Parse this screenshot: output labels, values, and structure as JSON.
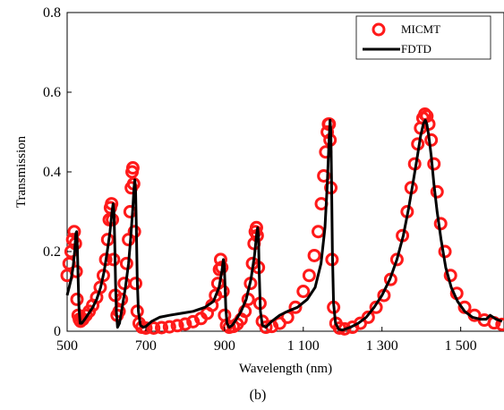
{
  "chart_data": {
    "type": "line",
    "title": "",
    "caption": "(b)",
    "xlabel": "Wavelength (nm)",
    "ylabel": "Transmission",
    "xlim": [
      500,
      1610
    ],
    "ylim": [
      0,
      0.8
    ],
    "x_ticks": [
      500,
      700,
      900,
      1100,
      1300,
      1500
    ],
    "x_tick_labels": [
      "500",
      "700",
      "900",
      "1 100",
      "1 300",
      "1 500"
    ],
    "y_ticks": [
      0,
      0.2,
      0.4,
      0.6,
      0.8
    ],
    "y_tick_labels": [
      "0",
      "0.2",
      "0.4",
      "0.6",
      "0.8"
    ],
    "grid": false,
    "legend_position": "top-right",
    "series": [
      {
        "name": "MICMT",
        "style": "markers",
        "color": "#ff1a1a",
        "x": [
          500,
          505,
          510,
          514,
          518,
          521,
          523,
          525,
          528,
          531,
          534,
          540,
          548,
          556,
          565,
          575,
          584,
          592,
          598,
          603,
          607,
          610,
          613,
          615,
          618,
          622,
          627,
          632,
          638,
          645,
          651,
          656,
          660,
          663,
          665,
          667,
          669,
          671,
          674,
          678,
          683,
          690,
          700,
          720,
          740,
          760,
          780,
          800,
          820,
          840,
          856,
          868,
          877,
          883,
          887,
          890,
          893,
          896,
          900,
          905,
          912,
          922,
          932,
          942,
          952,
          960,
          966,
          971,
          975,
          978,
          981,
          983,
          986,
          990,
          996,
          1005,
          1020,
          1040,
          1060,
          1080,
          1100,
          1115,
          1128,
          1138,
          1146,
          1152,
          1157,
          1161,
          1164,
          1166,
          1168,
          1170,
          1173,
          1177,
          1183,
          1192,
          1205,
          1225,
          1245,
          1265,
          1285,
          1305,
          1322,
          1338,
          1352,
          1364,
          1374,
          1383,
          1391,
          1398,
          1404,
          1409,
          1414,
          1419,
          1425,
          1432,
          1440,
          1449,
          1460,
          1474,
          1490,
          1510,
          1535,
          1560,
          1585,
          1605
        ],
        "y": [
          0.14,
          0.17,
          0.2,
          0.23,
          0.25,
          0.22,
          0.15,
          0.08,
          0.04,
          0.03,
          0.025,
          0.03,
          0.04,
          0.05,
          0.065,
          0.085,
          0.11,
          0.14,
          0.18,
          0.23,
          0.28,
          0.31,
          0.32,
          0.28,
          0.18,
          0.09,
          0.04,
          0.05,
          0.08,
          0.12,
          0.17,
          0.23,
          0.3,
          0.36,
          0.4,
          0.41,
          0.37,
          0.25,
          0.12,
          0.05,
          0.02,
          0.01,
          0.008,
          0.008,
          0.009,
          0.011,
          0.014,
          0.018,
          0.024,
          0.032,
          0.045,
          0.065,
          0.09,
          0.12,
          0.155,
          0.18,
          0.16,
          0.1,
          0.04,
          0.015,
          0.01,
          0.012,
          0.018,
          0.03,
          0.05,
          0.08,
          0.12,
          0.17,
          0.22,
          0.25,
          0.26,
          0.24,
          0.16,
          0.07,
          0.025,
          0.01,
          0.012,
          0.02,
          0.035,
          0.06,
          0.1,
          0.14,
          0.19,
          0.25,
          0.32,
          0.39,
          0.45,
          0.5,
          0.52,
          0.52,
          0.48,
          0.36,
          0.18,
          0.06,
          0.02,
          0.008,
          0.006,
          0.01,
          0.02,
          0.035,
          0.06,
          0.09,
          0.13,
          0.18,
          0.24,
          0.3,
          0.36,
          0.42,
          0.47,
          0.51,
          0.535,
          0.545,
          0.54,
          0.52,
          0.48,
          0.42,
          0.35,
          0.27,
          0.2,
          0.14,
          0.095,
          0.06,
          0.04,
          0.028,
          0.021,
          0.017
        ]
      },
      {
        "name": "FDTD",
        "style": "line",
        "color": "#000000",
        "x": [
          500,
          505,
          510,
          515,
          519,
          522,
          524,
          526,
          528,
          530,
          533,
          537,
          545,
          555,
          565,
          575,
          585,
          594,
          602,
          609,
          614,
          617,
          619,
          621,
          623,
          625,
          628,
          633,
          640,
          648,
          656,
          662,
          667,
          670,
          672,
          674,
          676,
          678,
          681,
          686,
          693,
          700,
          715,
          735,
          760,
          790,
          820,
          850,
          872,
          886,
          893,
          897,
          899,
          901,
          903,
          906,
          912,
          920,
          930,
          942,
          955,
          967,
          976,
          981,
          984,
          986,
          988,
          991,
          996,
          1005,
          1020,
          1040,
          1060,
          1085,
          1110,
          1130,
          1145,
          1155,
          1161,
          1165,
          1168,
          1170,
          1172,
          1174,
          1177,
          1182,
          1190,
          1200,
          1220,
          1240,
          1260,
          1280,
          1300,
          1320,
          1338,
          1354,
          1368,
          1380,
          1390,
          1398,
          1405,
          1410,
          1414,
          1419,
          1425,
          1432,
          1440,
          1450,
          1462,
          1476,
          1492,
          1510,
          1530,
          1550,
          1565,
          1575,
          1590,
          1605
        ],
        "y": [
          0.09,
          0.11,
          0.13,
          0.16,
          0.2,
          0.245,
          0.25,
          0.21,
          0.13,
          0.06,
          0.02,
          0.02,
          0.03,
          0.045,
          0.06,
          0.08,
          0.11,
          0.15,
          0.2,
          0.25,
          0.3,
          0.32,
          0.3,
          0.22,
          0.12,
          0.05,
          0.01,
          0.02,
          0.06,
          0.11,
          0.17,
          0.24,
          0.31,
          0.36,
          0.38,
          0.35,
          0.25,
          0.13,
          0.05,
          0.015,
          0.01,
          0.012,
          0.025,
          0.035,
          0.04,
          0.045,
          0.05,
          0.06,
          0.075,
          0.11,
          0.15,
          0.18,
          0.17,
          0.12,
          0.06,
          0.02,
          0.01,
          0.015,
          0.03,
          0.05,
          0.08,
          0.13,
          0.19,
          0.24,
          0.26,
          0.24,
          0.15,
          0.05,
          0.015,
          0.01,
          0.025,
          0.04,
          0.05,
          0.06,
          0.08,
          0.11,
          0.17,
          0.26,
          0.37,
          0.47,
          0.53,
          0.5,
          0.37,
          0.2,
          0.07,
          0.02,
          0.005,
          0.003,
          0.01,
          0.02,
          0.035,
          0.06,
          0.09,
          0.13,
          0.18,
          0.24,
          0.31,
          0.38,
          0.44,
          0.49,
          0.52,
          0.53,
          0.52,
          0.49,
          0.44,
          0.37,
          0.3,
          0.23,
          0.16,
          0.11,
          0.075,
          0.05,
          0.035,
          0.03,
          0.03,
          0.04,
          0.03,
          0.025
        ]
      }
    ]
  }
}
